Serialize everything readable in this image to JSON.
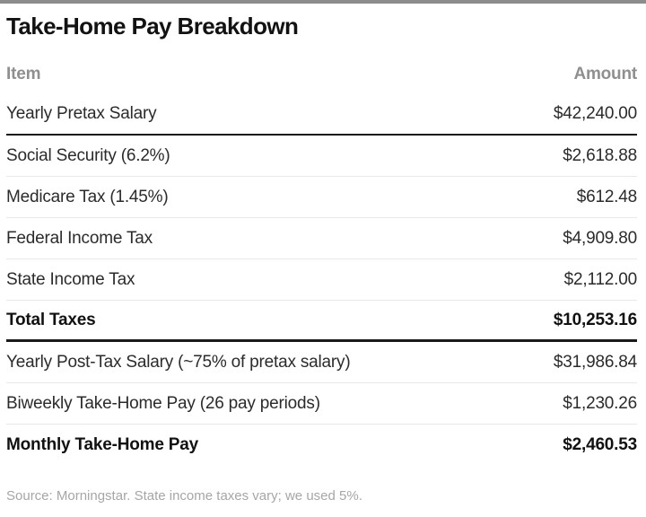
{
  "page": {
    "title": "Take-Home Pay Breakdown",
    "source_note": "Source: Morningstar. State income taxes vary; we used 5%."
  },
  "table": {
    "columns": {
      "item": "Item",
      "amount": "Amount"
    },
    "rows": [
      {
        "item": "Yearly Pretax Salary",
        "amount": "$42,240.00",
        "bold": false,
        "divider_below": "heavy"
      },
      {
        "item": "Social Security (6.2%)",
        "amount": "$2,618.88",
        "bold": false,
        "divider_below": "thin"
      },
      {
        "item": "Medicare Tax (1.45%)",
        "amount": "$612.48",
        "bold": false,
        "divider_below": "thin"
      },
      {
        "item": "Federal Income Tax",
        "amount": "$4,909.80",
        "bold": false,
        "divider_below": "thin"
      },
      {
        "item": "State Income Tax",
        "amount": "$2,112.00",
        "bold": false,
        "divider_below": "thin"
      },
      {
        "item": "Total Taxes",
        "amount": "$10,253.16",
        "bold": true,
        "divider_below": "heavy3"
      },
      {
        "item": "Yearly Post-Tax Salary (~75% of pretax salary)",
        "amount": "$31,986.84",
        "bold": false,
        "divider_below": "thin"
      },
      {
        "item": "Biweekly Take-Home Pay (26 pay periods)",
        "amount": "$1,230.26",
        "bold": false,
        "divider_below": "thin"
      },
      {
        "item": "Monthly Take-Home Pay",
        "amount": "$2,460.53",
        "bold": true,
        "divider_below": "none"
      }
    ]
  },
  "colors": {
    "title": "#121212",
    "header_text": "#8f8f8f",
    "row_text": "#2b2b2b",
    "heavy_rule": "#1a1a1a",
    "thin_rule": "#e8e8e8",
    "source_text": "#a6a6a6",
    "top_bar": "#8c8c8c",
    "background": "#ffffff"
  }
}
